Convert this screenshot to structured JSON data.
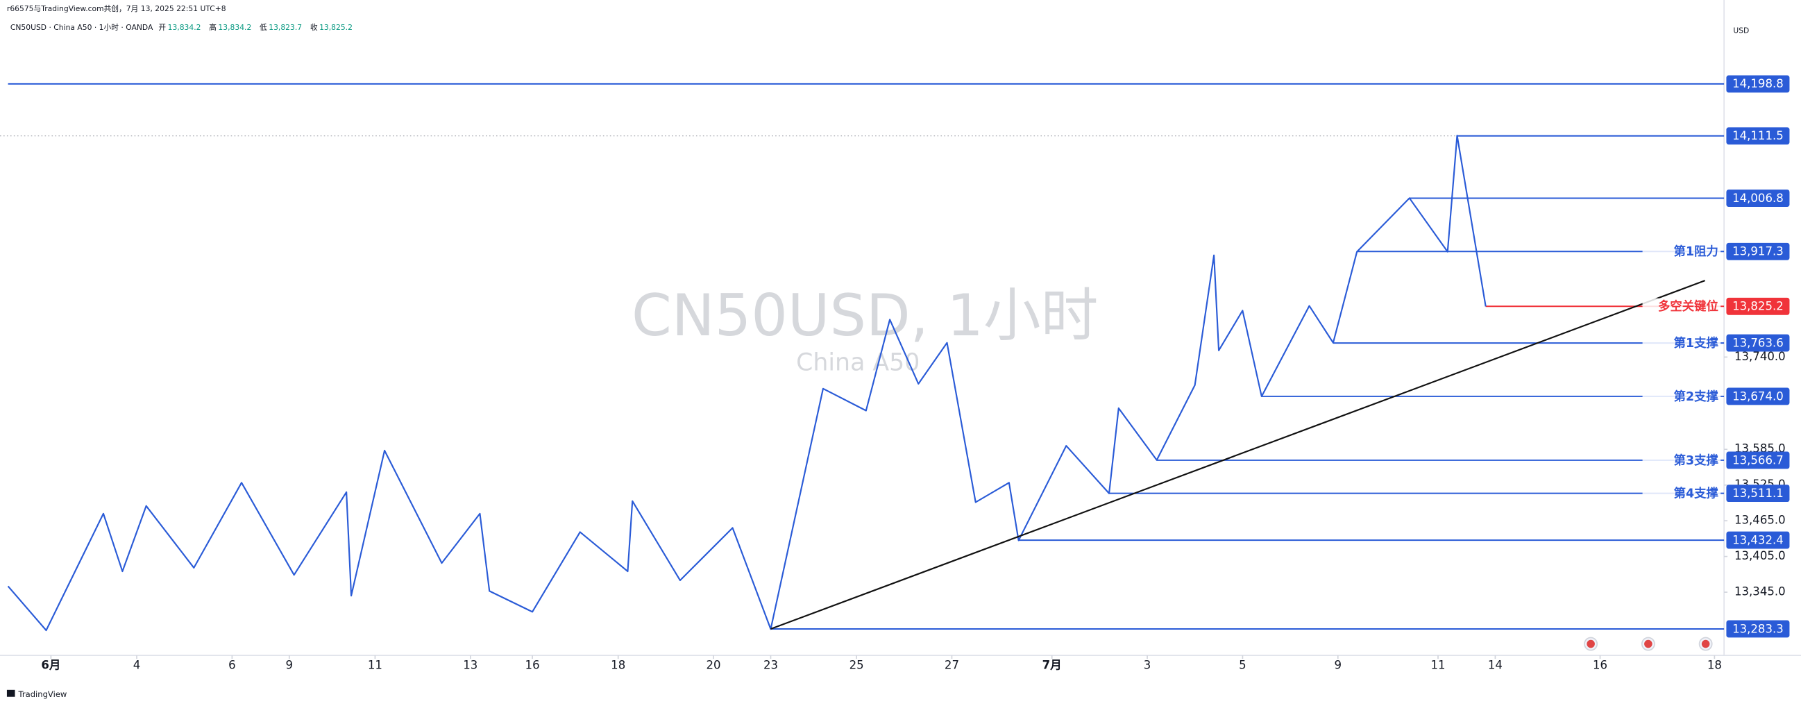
{
  "header": {
    "source": "r66575与TradingView.com共创，7月 13, 2025 22:51 UTC+8",
    "symbol": "CN50USD · China A50 · 1小时 · OANDA",
    "ohlc": [
      {
        "label": "开",
        "value": "13,834.2"
      },
      {
        "label": "高",
        "value": "13,834.2"
      },
      {
        "label": "低",
        "value": "13,823.7"
      },
      {
        "label": "收",
        "value": "13,825.2"
      }
    ]
  },
  "chart_data": {
    "type": "line",
    "watermark": "CN50USD, 1小时",
    "watermark_sub": "China A50",
    "currency": "USD",
    "xlim": [
      0,
      36
    ],
    "ylim": [
      13238.8,
      14339.8
    ],
    "xticks": [
      {
        "value": 0.9,
        "label": "6月"
      },
      {
        "value": 2.7,
        "label": "4"
      },
      {
        "value": 4.7,
        "label": "6"
      },
      {
        "value": 5.9,
        "label": "9"
      },
      {
        "value": 7.7,
        "label": "11"
      },
      {
        "value": 9.7,
        "label": "13"
      },
      {
        "value": 11.0,
        "label": "16"
      },
      {
        "value": 12.8,
        "label": "18"
      },
      {
        "value": 14.8,
        "label": "20"
      },
      {
        "value": 16.0,
        "label": "23"
      },
      {
        "value": 17.8,
        "label": "25"
      },
      {
        "value": 19.8,
        "label": "27"
      },
      {
        "value": 21.9,
        "label": "7月"
      },
      {
        "value": 23.9,
        "label": "3"
      },
      {
        "value": 25.9,
        "label": "5"
      },
      {
        "value": 27.9,
        "label": "9"
      },
      {
        "value": 30.0,
        "label": "11"
      },
      {
        "value": 31.2,
        "label": "14"
      },
      {
        "value": 33.4,
        "label": "16"
      },
      {
        "value": 35.8,
        "label": "18"
      }
    ],
    "yticks": [
      {
        "value": 13740,
        "label": "13,740.0"
      },
      {
        "value": 13585,
        "label": "13,585.0"
      },
      {
        "value": 13525,
        "label": "13,525.0"
      },
      {
        "value": 13465,
        "label": "13,465.0"
      },
      {
        "value": 13405,
        "label": "13,405.0"
      },
      {
        "value": 13345,
        "label": "13,345.0"
      }
    ],
    "series": [
      {
        "color": "#2a5bd7",
        "x": [
          0.0,
          0.8,
          2.0,
          2.4,
          2.9,
          3.9,
          4.9,
          6.0,
          7.1,
          7.2,
          7.9,
          9.1,
          9.9,
          10.1,
          11.0,
          12.0,
          13.0,
          13.1,
          14.1,
          15.2,
          16.0,
          17.1,
          18.0,
          18.5,
          19.1,
          19.7,
          20.3,
          21.0,
          21.2,
          22.2,
          23.1,
          23.3,
          24.1,
          24.9,
          25.3,
          25.4,
          25.9,
          26.3,
          27.3,
          27.8,
          28.3,
          29.4,
          30.2,
          30.4,
          31.0
        ],
        "values": [
          13355,
          13281,
          13477,
          13380,
          13490,
          13386,
          13529,
          13374,
          13513,
          13339,
          13583,
          13394,
          13477,
          13347,
          13312,
          13446,
          13380,
          13498,
          13365,
          13453,
          13283,
          13687,
          13650,
          13803,
          13695,
          13764,
          13496,
          13529,
          13432,
          13591,
          13511,
          13654,
          13567,
          13693,
          13911,
          13751,
          13818,
          13674,
          13826,
          13764,
          13917,
          14007,
          13917,
          14112,
          13825
        ]
      },
      {
        "color": "#111111",
        "x": [
          16.0,
          35.6
        ],
        "values": [
          13283.3,
          13868.5
        ]
      }
    ],
    "levels": [
      {
        "value": 14198.8,
        "label": "14,198.8",
        "start": 0,
        "color": "#2a5bd7"
      },
      {
        "value": 14111.5,
        "label": "14,111.5",
        "start": 30.4,
        "color": "#2a5bd7"
      },
      {
        "value": 14006.8,
        "label": "14,006.8",
        "start": 29.4,
        "color": "#2a5bd7"
      },
      {
        "value": 13917.3,
        "label": "13,917.3",
        "start": 28.3,
        "color": "#2a5bd7",
        "name": "第1阻力"
      },
      {
        "value": 13825.2,
        "label": "13,825.2",
        "start": 31.0,
        "color": "#f0333a",
        "name": "多空关键位"
      },
      {
        "value": 13763.6,
        "label": "13,763.6",
        "start": 27.8,
        "color": "#2a5bd7",
        "name": "第1支撑"
      },
      {
        "value": 13674.0,
        "label": "13,674.0",
        "start": 26.3,
        "color": "#2a5bd7",
        "name": "第2支撑"
      },
      {
        "value": 13566.7,
        "label": "13,566.7",
        "start": 24.1,
        "color": "#2a5bd7",
        "name": "第3支撑"
      },
      {
        "value": 13511.1,
        "label": "13,511.1",
        "start": 23.1,
        "color": "#2a5bd7",
        "name": "第4支撑"
      },
      {
        "value": 13432.4,
        "label": "13,432.4",
        "start": 21.2,
        "color": "#2a5bd7"
      },
      {
        "value": 13283.3,
        "label": "13,283.3",
        "start": 16.0,
        "color": "#2a5bd7"
      }
    ]
  },
  "footer": "TradingView"
}
